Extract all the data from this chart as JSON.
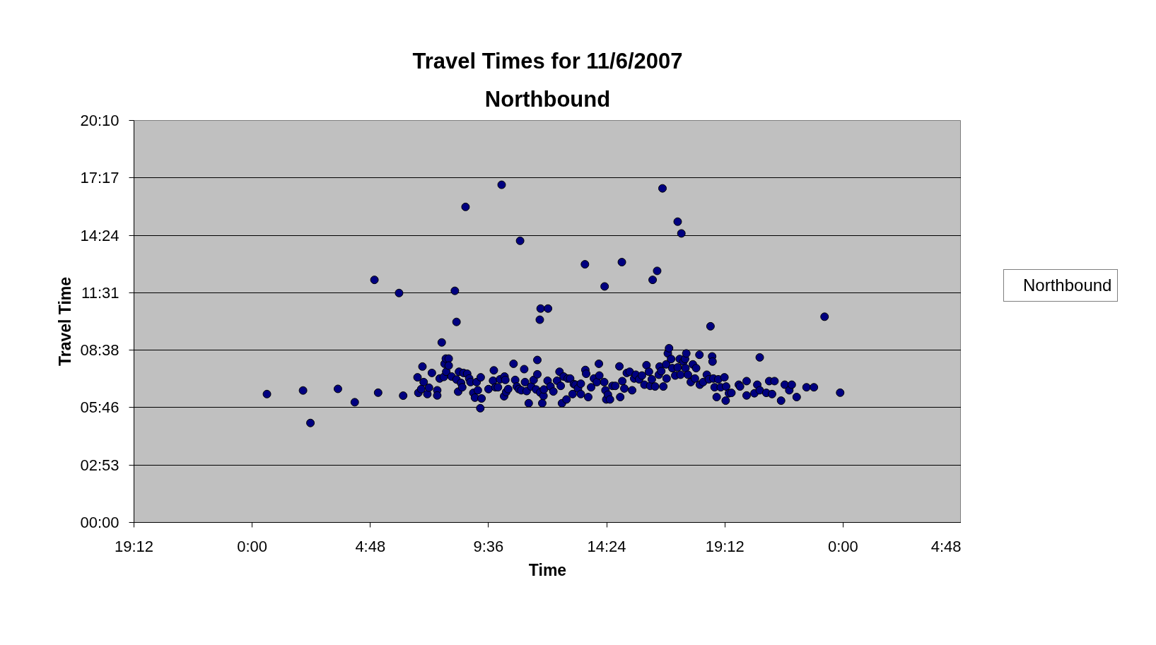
{
  "chart_data": {
    "type": "scatter",
    "title": "Travel Times for 11/6/2007",
    "subtitle": "Northbound",
    "xlabel": "Time",
    "ylabel": "Travel Time",
    "xlim": [
      "2007-11-05T19:12",
      "2007-11-07T04:48"
    ],
    "xticks": [
      {
        "value": "2007-11-05T19:12",
        "label": "19:12"
      },
      {
        "value": "2007-11-06T00:00",
        "label": "0:00"
      },
      {
        "value": "2007-11-06T04:48",
        "label": "4:48"
      },
      {
        "value": "2007-11-06T09:36",
        "label": "9:36"
      },
      {
        "value": "2007-11-06T14:24",
        "label": "14:24"
      },
      {
        "value": "2007-11-06T19:12",
        "label": "19:12"
      },
      {
        "value": "2007-11-07T00:00",
        "label": "0:00"
      },
      {
        "value": "2007-11-07T04:48",
        "label": "4:48"
      }
    ],
    "ylim": [
      0,
      20.167
    ],
    "yticks": [
      {
        "value": 0,
        "label": "00:00"
      },
      {
        "value": 2.883,
        "label": "02:53"
      },
      {
        "value": 5.767,
        "label": "05:46"
      },
      {
        "value": 8.633,
        "label": "08:38"
      },
      {
        "value": 11.517,
        "label": "11:31"
      },
      {
        "value": 14.4,
        "label": "14:24"
      },
      {
        "value": 17.283,
        "label": "17:17"
      },
      {
        "value": 20.167,
        "label": "20:10"
      }
    ],
    "grid": "y",
    "legend": "right",
    "marker": "circle",
    "series": [
      {
        "name": "Northbound",
        "color": "#000080",
        "x": [
          "2007-11-06T00:36",
          "2007-11-06T02:04",
          "2007-11-06T02:22",
          "2007-11-06T03:29",
          "2007-11-06T04:10",
          "2007-11-06T04:58",
          "2007-11-06T05:07",
          "2007-11-06T05:58",
          "2007-11-06T06:08",
          "2007-11-06T07:42",
          "2007-11-06T08:14",
          "2007-11-06T08:18",
          "2007-11-06T08:40",
          "2007-11-06T09:16",
          "2007-11-06T10:08",
          "2007-11-06T10:53",
          "2007-11-06T11:41",
          "2007-11-06T11:43",
          "2007-11-06T12:01",
          "2007-11-06T13:31",
          "2007-11-06T14:19",
          "2007-11-06T15:01",
          "2007-11-06T16:16",
          "2007-11-06T16:27",
          "2007-11-06T16:40",
          "2007-11-06T17:17",
          "2007-11-06T17:26",
          "2007-11-06T18:37",
          "2007-11-06T23:15",
          "2007-11-06T23:53",
          "2007-11-06T06:43",
          "2007-11-06T06:45",
          "2007-11-06T06:55",
          "2007-11-06T06:58",
          "2007-11-06T06:52",
          "2007-11-06T07:07",
          "2007-11-06T07:11",
          "2007-11-06T07:18",
          "2007-11-06T07:31",
          "2007-11-06T07:31",
          "2007-11-06T07:37",
          "2007-11-06T07:47",
          "2007-11-06T07:49",
          "2007-11-06T07:52",
          "2007-11-06T07:53",
          "2007-11-06T07:59",
          "2007-11-06T07:59",
          "2007-11-06T08:06",
          "2007-11-06T08:18",
          "2007-11-06T08:22",
          "2007-11-06T08:24",
          "2007-11-06T08:29",
          "2007-11-06T08:32",
          "2007-11-06T08:35",
          "2007-11-06T08:44",
          "2007-11-06T08:49",
          "2007-11-06T08:52",
          "2007-11-06T08:59",
          "2007-11-06T09:03",
          "2007-11-06T09:07",
          "2007-11-06T09:10",
          "2007-11-06T09:17",
          "2007-11-06T09:19",
          "2007-11-06T09:36",
          "2007-11-06T09:47",
          "2007-11-06T09:49",
          "2007-11-06T09:53",
          "2007-11-06T09:59",
          "2007-11-06T10:04",
          "2007-11-06T10:14",
          "2007-11-06T10:15",
          "2007-11-06T10:17",
          "2007-11-06T10:19",
          "2007-11-06T10:24",
          "2007-11-06T10:37",
          "2007-11-06T10:41",
          "2007-11-06T10:45",
          "2007-11-06T10:50",
          "2007-11-06T10:56",
          "2007-11-06T11:03",
          "2007-11-06T11:05",
          "2007-11-06T11:09",
          "2007-11-06T11:14",
          "2007-11-06T11:20",
          "2007-11-06T11:26",
          "2007-11-06T11:32",
          "2007-11-06T11:35",
          "2007-11-06T11:35",
          "2007-11-06T11:42",
          "2007-11-06T11:47",
          "2007-11-06T11:50",
          "2007-11-06T11:51",
          "2007-11-06T12:00",
          "2007-11-06T12:07",
          "2007-11-06T12:14",
          "2007-11-06T12:23",
          "2007-11-06T12:29",
          "2007-11-06T12:32",
          "2007-11-06T12:35",
          "2007-11-06T12:39",
          "2007-11-06T12:46",
          "2007-11-06T12:49",
          "2007-11-06T12:55",
          "2007-11-06T13:01",
          "2007-11-06T13:04",
          "2007-11-06T13:08",
          "2007-11-06T13:14",
          "2007-11-06T13:21",
          "2007-11-06T13:21",
          "2007-11-06T13:32",
          "2007-11-06T13:34",
          "2007-11-06T13:39",
          "2007-11-06T13:46",
          "2007-11-06T13:53",
          "2007-11-06T14:00",
          "2007-11-06T14:05",
          "2007-11-06T14:06",
          "2007-11-06T14:18",
          "2007-11-06T14:21",
          "2007-11-06T14:23",
          "2007-11-06T14:27",
          "2007-11-06T14:32",
          "2007-11-06T14:38",
          "2007-11-06T14:45",
          "2007-11-06T14:55",
          "2007-11-06T14:57",
          "2007-11-06T15:02",
          "2007-11-06T15:07",
          "2007-11-06T15:13",
          "2007-11-06T15:20",
          "2007-11-06T15:26",
          "2007-11-06T15:31",
          "2007-11-06T15:35",
          "2007-11-06T15:43",
          "2007-11-06T15:50",
          "2007-11-06T15:56",
          "2007-11-06T16:01",
          "2007-11-06T16:07",
          "2007-11-06T16:10",
          "2007-11-06T16:14",
          "2007-11-06T16:22",
          "2007-11-06T16:31",
          "2007-11-06T16:33",
          "2007-11-06T16:37",
          "2007-11-06T16:42",
          "2007-11-06T16:49",
          "2007-11-06T16:50",
          "2007-11-06T16:53",
          "2007-11-06T16:56",
          "2007-11-06T17:01",
          "2007-11-06T17:04",
          "2007-11-06T17:11",
          "2007-11-06T17:17",
          "2007-11-06T17:22",
          "2007-11-06T17:24",
          "2007-11-06T17:31",
          "2007-11-06T17:35",
          "2007-11-06T17:38",
          "2007-11-06T17:36",
          "2007-11-06T17:42",
          "2007-11-06T17:49",
          "2007-11-06T17:54",
          "2007-11-06T17:59",
          "2007-11-06T18:02",
          "2007-11-06T18:10",
          "2007-11-06T18:11",
          "2007-11-06T18:19",
          "2007-11-06T18:28",
          "2007-11-06T18:33",
          "2007-11-06T18:41",
          "2007-11-06T18:42",
          "2007-11-06T18:44",
          "2007-11-06T18:47",
          "2007-11-06T18:52",
          "2007-11-06T18:56",
          "2007-11-06T19:02",
          "2007-11-06T19:11",
          "2007-11-06T19:14",
          "2007-11-06T19:15",
          "2007-11-06T19:22",
          "2007-11-06T19:28",
          "2007-11-06T19:46",
          "2007-11-06T19:49",
          "2007-11-06T20:05",
          "2007-11-06T20:05",
          "2007-11-06T20:24",
          "2007-11-06T20:31",
          "2007-11-06T20:37",
          "2007-11-06T20:37",
          "2007-11-06T20:53",
          "2007-11-06T21:00",
          "2007-11-06T21:07",
          "2007-11-06T21:13",
          "2007-11-06T21:29",
          "2007-11-06T21:38",
          "2007-11-06T21:49",
          "2007-11-06T21:55",
          "2007-11-06T22:07",
          "2007-11-06T22:31",
          "2007-11-06T22:49"
        ],
        "values": [
          6.44,
          6.62,
          4.99,
          6.7,
          6.03,
          12.17,
          6.51,
          11.51,
          6.36,
          9.03,
          11.62,
          10.06,
          15.83,
          5.73,
          16.94,
          14.13,
          10.17,
          10.73,
          10.73,
          12.95,
          11.84,
          13.06,
          12.17,
          12.62,
          16.76,
          15.09,
          14.5,
          9.84,
          10.32,
          6.51,
          7.28,
          6.5,
          7.82,
          7.04,
          6.69,
          6.44,
          6.76,
          7.5,
          6.63,
          6.37,
          7.22,
          7.3,
          7.96,
          8.22,
          7.56,
          8.22,
          7.87,
          7.32,
          7.17,
          6.56,
          7.56,
          7.0,
          6.78,
          7.5,
          7.46,
          7.22,
          7.04,
          6.5,
          6.26,
          7.04,
          6.63,
          7.28,
          6.22,
          6.69,
          7.11,
          7.63,
          6.78,
          6.78,
          7.18,
          6.33,
          7.32,
          7.15,
          6.54,
          6.69,
          7.96,
          7.15,
          6.82,
          6.69,
          6.63,
          7.69,
          7.04,
          6.59,
          5.98,
          6.82,
          7.15,
          6.67,
          8.15,
          7.43,
          6.52,
          5.98,
          6.35,
          6.67,
          7.11,
          6.82,
          6.57,
          7.11,
          7.56,
          6.85,
          5.98,
          7.32,
          6.17,
          7.22,
          7.22,
          6.44,
          6.94,
          6.91,
          6.72,
          6.44,
          6.96,
          7.65,
          7.46,
          6.29,
          6.78,
          7.22,
          7.04,
          7.96,
          7.37,
          7.04,
          6.63,
          6.17,
          6.41,
          6.17,
          6.85,
          6.85,
          7.83,
          6.29,
          7.09,
          6.72,
          7.5,
          7.56,
          6.63,
          7.22,
          7.41,
          7.18,
          7.37,
          6.91,
          7.89,
          7.56,
          6.85,
          7.18,
          6.82,
          7.41,
          7.82,
          7.59,
          6.82,
          7.93,
          7.22,
          8.48,
          8.74,
          8.2,
          7.74,
          7.37,
          7.78,
          8.2,
          7.41,
          8.07,
          8.2,
          8.48,
          7.74,
          7.41,
          7.04,
          7.93,
          7.22,
          7.74,
          8.41,
          6.91,
          7.04,
          7.41,
          7.18,
          8.33,
          8.07,
          7.22,
          6.78,
          6.29,
          7.18,
          6.78,
          7.28,
          6.11,
          6.82,
          6.48,
          6.5,
          6.91,
          6.82,
          7.09,
          6.37,
          6.48,
          6.91,
          8.28,
          6.63,
          6.5,
          7.09,
          6.44,
          7.09,
          6.11,
          6.91,
          6.63,
          6.91,
          6.29,
          6.78,
          6.78
        ]
      }
    ]
  }
}
